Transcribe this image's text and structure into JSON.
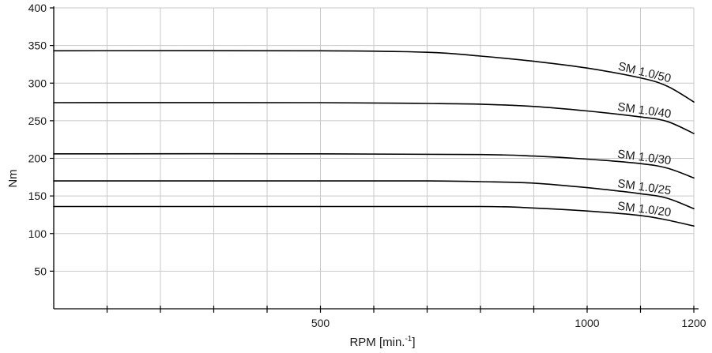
{
  "chart_data": {
    "type": "line",
    "title": "",
    "xlabel": "RPM [min.⁻¹]",
    "ylabel": "Nm",
    "xlim": [
      0,
      1200
    ],
    "ylim": [
      0,
      400
    ],
    "x_ticks": [
      500,
      1000,
      1200
    ],
    "y_ticks": [
      50,
      100,
      150,
      200,
      250,
      300,
      350,
      400
    ],
    "x_grid_step": 100,
    "y_grid_step": 50,
    "grid": true,
    "legend": "none",
    "colors": {
      "line": "#000000",
      "grid": "#c8c8c8",
      "axis": "#000000",
      "text": "#1a1a1a"
    },
    "series": [
      {
        "name": "SM 1.0/50",
        "x": [
          0,
          500,
          700,
          800,
          900,
          1000,
          1100,
          1150,
          1200
        ],
        "y": [
          343,
          343,
          341,
          336,
          329,
          320,
          307,
          296,
          275
        ]
      },
      {
        "name": "SM 1.0/40",
        "x": [
          0,
          500,
          700,
          800,
          900,
          1000,
          1100,
          1150,
          1200
        ],
        "y": [
          274,
          274,
          273,
          272,
          269,
          263,
          255,
          249,
          233
        ]
      },
      {
        "name": "SM 1.0/30",
        "x": [
          0,
          500,
          800,
          900,
          1000,
          1100,
          1150,
          1200
        ],
        "y": [
          206,
          206,
          205,
          203,
          199,
          193,
          187,
          174
        ]
      },
      {
        "name": "SM 1.0/25",
        "x": [
          0,
          500,
          700,
          800,
          900,
          1000,
          1100,
          1150,
          1200
        ],
        "y": [
          170,
          170,
          170,
          169,
          167,
          161,
          153,
          147,
          133
        ]
      },
      {
        "name": "SM 1.0/20",
        "x": [
          0,
          500,
          800,
          900,
          1000,
          1100,
          1150,
          1200
        ],
        "y": [
          136,
          136,
          136,
          134,
          130,
          124,
          118,
          110
        ]
      }
    ]
  }
}
